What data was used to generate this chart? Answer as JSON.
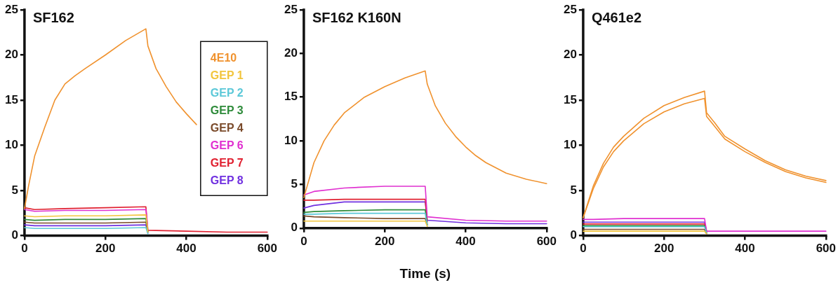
{
  "chart_data": [
    {
      "type": "line",
      "title": "SF162",
      "ylim": [
        0,
        25
      ],
      "yticks": [
        0,
        5,
        10,
        15,
        20,
        25
      ],
      "xlim": [
        0,
        600
      ],
      "xticks": [
        0,
        200,
        400,
        600
      ],
      "grid": false,
      "legend": "top right",
      "marker": "none",
      "line_style": "solid",
      "series": [
        {
          "name": "4E10",
          "color": "#f0922e",
          "x": [
            0,
            10,
            25,
            50,
            75,
            100,
            125,
            150,
            200,
            250,
            300,
            305,
            325,
            350,
            375,
            400,
            425
          ],
          "values": [
            3,
            5.5,
            8.8,
            12,
            15,
            16.8,
            17.7,
            18.5,
            20,
            21.6,
            22.9,
            21,
            18.5,
            16.5,
            14.8,
            13.5,
            12.3
          ]
        },
        {
          "name": "GEP 1",
          "color": "#f2c53d",
          "x": [
            0,
            25,
            100,
            200,
            300,
            305
          ],
          "values": [
            2.2,
            2.1,
            2.2,
            2.2,
            2.3,
            0.4
          ]
        },
        {
          "name": "GEP 2",
          "color": "#5bc8d8",
          "x": [
            0,
            25,
            100,
            200,
            300,
            305
          ],
          "values": [
            0.9,
            0.8,
            0.8,
            0.8,
            0.9,
            0.2
          ]
        },
        {
          "name": "GEP 3",
          "color": "#2e8b3a",
          "x": [
            0,
            25,
            100,
            200,
            300,
            305
          ],
          "values": [
            1.8,
            1.7,
            1.8,
            1.8,
            1.9,
            0.4
          ]
        },
        {
          "name": "GEP 4",
          "color": "#7a4a2a",
          "x": [
            0,
            25,
            100,
            200,
            300,
            305
          ],
          "values": [
            1.5,
            1.4,
            1.4,
            1.4,
            1.5,
            0.5
          ]
        },
        {
          "name": "GEP 6",
          "color": "#e030d0",
          "x": [
            0,
            25,
            100,
            200,
            300,
            305
          ],
          "values": [
            2.9,
            2.7,
            2.8,
            2.8,
            2.9,
            0.5
          ]
        },
        {
          "name": "GEP 7",
          "color": "#e02030",
          "x": [
            0,
            25,
            100,
            200,
            300,
            305,
            400,
            500,
            600
          ],
          "values": [
            3.1,
            2.9,
            3.0,
            3.1,
            3.2,
            0.6,
            0.5,
            0.4,
            0.4
          ]
        },
        {
          "name": "GEP 8",
          "color": "#7030e0",
          "x": [
            0,
            25,
            100,
            200,
            300,
            305
          ],
          "values": [
            1.2,
            1.1,
            1.1,
            1.1,
            1.2,
            0.3
          ]
        }
      ]
    },
    {
      "type": "line",
      "title": "SF162 K160N",
      "xlabel": "Time (s)",
      "ylim": [
        0,
        25
      ],
      "yticks": [
        0,
        5,
        10,
        15,
        20,
        25
      ],
      "xlim": [
        0,
        600
      ],
      "xticks": [
        0,
        200,
        400,
        600
      ],
      "grid": false,
      "marker": "none",
      "line_style": "solid",
      "series": [
        {
          "color": "#f0922e",
          "x": [
            0,
            25,
            50,
            75,
            100,
            150,
            200,
            250,
            300,
            305,
            325,
            350,
            375,
            400,
            425,
            450,
            500,
            550,
            600
          ],
          "values": [
            3.5,
            7.5,
            10,
            11.8,
            13.2,
            15,
            16.2,
            17.2,
            18,
            16.5,
            14,
            12,
            10.5,
            9.3,
            8.3,
            7.5,
            6.3,
            5.6,
            5.1
          ]
        },
        {
          "color": "#f2c53d",
          "x": [
            0,
            25,
            100,
            200,
            300,
            305
          ],
          "values": [
            0.8,
            0.8,
            0.8,
            0.8,
            0.8,
            0.2
          ]
        },
        {
          "color": "#5bc8d8",
          "x": [
            0,
            25,
            100,
            200,
            300,
            305
          ],
          "values": [
            1.6,
            1.6,
            1.7,
            1.7,
            1.7,
            0.3
          ]
        },
        {
          "color": "#2e8b3a",
          "x": [
            0,
            25,
            100,
            200,
            300,
            305
          ],
          "values": [
            1.8,
            1.9,
            2.0,
            2.1,
            2.1,
            0.4
          ]
        },
        {
          "color": "#7a4a2a",
          "x": [
            0,
            25,
            100,
            200,
            300,
            305
          ],
          "values": [
            1.4,
            1.3,
            1.2,
            1.1,
            1.1,
            0.4
          ]
        },
        {
          "color": "#e030d0",
          "x": [
            0,
            25,
            100,
            200,
            300,
            305,
            400,
            500,
            600
          ],
          "values": [
            3.8,
            4.2,
            4.6,
            4.8,
            4.8,
            1.3,
            0.9,
            0.8,
            0.8
          ]
        },
        {
          "color": "#e02030",
          "x": [
            0,
            25,
            100,
            200,
            300,
            305
          ],
          "values": [
            3.2,
            3.2,
            3.3,
            3.3,
            3.3,
            0.7
          ]
        },
        {
          "color": "#7030e0",
          "x": [
            0,
            25,
            100,
            200,
            300,
            305,
            400,
            500,
            600
          ],
          "values": [
            2.3,
            2.6,
            3.0,
            3.0,
            3.0,
            0.9,
            0.6,
            0.5,
            0.5
          ]
        }
      ]
    },
    {
      "type": "line",
      "title": "Q461e2",
      "ylim": [
        0,
        25
      ],
      "yticks": [
        0,
        5,
        10,
        15,
        20,
        25
      ],
      "xlim": [
        0,
        600
      ],
      "xticks": [
        0,
        200,
        400,
        600
      ],
      "grid": false,
      "marker": "none",
      "line_style": "solid",
      "series": [
        {
          "color": "#f0922e",
          "x": [
            0,
            25,
            50,
            75,
            100,
            150,
            200,
            250,
            300,
            305,
            325,
            350,
            400,
            450,
            500,
            550,
            600
          ],
          "values": [
            2,
            5.5,
            8,
            9.8,
            11,
            13,
            14.4,
            15.3,
            16,
            13.6,
            12.5,
            11,
            9.6,
            8.3,
            7.3,
            6.6,
            6.1
          ]
        },
        {
          "color": "#f0922e",
          "x": [
            0,
            25,
            50,
            75,
            100,
            150,
            200,
            250,
            300,
            305,
            325,
            350,
            400,
            450,
            500,
            550,
            600
          ],
          "values": [
            2,
            5.2,
            7.6,
            9.3,
            10.5,
            12.4,
            13.7,
            14.6,
            15.2,
            13.2,
            12.1,
            10.7,
            9.3,
            8.1,
            7.1,
            6.4,
            5.9
          ]
        },
        {
          "color": "#f2c53d",
          "x": [
            0,
            25,
            100,
            200,
            300,
            305
          ],
          "values": [
            0.5,
            0.5,
            0.5,
            0.5,
            0.5,
            0.2
          ]
        },
        {
          "color": "#5bc8d8",
          "x": [
            0,
            25,
            100,
            200,
            300,
            305
          ],
          "values": [
            1.0,
            1.0,
            1.0,
            1.0,
            1.0,
            0.3
          ]
        },
        {
          "color": "#2e8b3a",
          "x": [
            0,
            25,
            100,
            200,
            300,
            305
          ],
          "values": [
            1.1,
            1.1,
            1.1,
            1.1,
            1.1,
            0.3
          ]
        },
        {
          "color": "#7a4a2a",
          "x": [
            0,
            25,
            100,
            200,
            300,
            305
          ],
          "values": [
            0.7,
            0.7,
            0.7,
            0.7,
            0.7,
            0.2
          ]
        },
        {
          "color": "#e030d0",
          "x": [
            0,
            25,
            100,
            200,
            300,
            305,
            400,
            500,
            600
          ],
          "values": [
            1.8,
            1.8,
            1.9,
            1.9,
            1.9,
            0.5,
            0.5,
            0.5,
            0.5
          ]
        },
        {
          "color": "#e02030",
          "x": [
            0,
            25,
            100,
            200,
            300,
            305
          ],
          "values": [
            1.3,
            1.3,
            1.3,
            1.3,
            1.3,
            0.4
          ]
        },
        {
          "color": "#7030e0",
          "x": [
            0,
            25,
            100,
            200,
            300,
            305
          ],
          "values": [
            1.5,
            1.5,
            1.5,
            1.5,
            1.5,
            0.5
          ]
        }
      ]
    }
  ]
}
